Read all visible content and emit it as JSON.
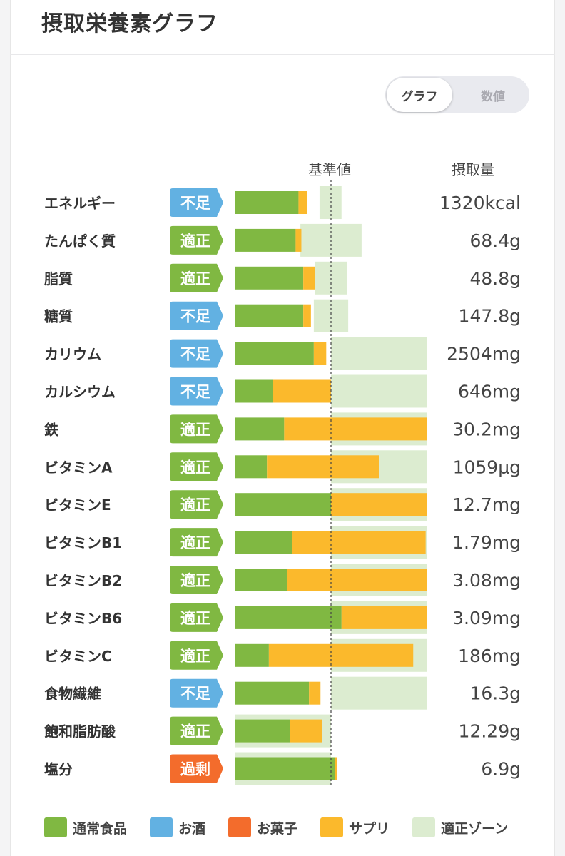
{
  "header": {
    "title": "摂取栄養素グラフ"
  },
  "view_toggle": {
    "graph_label": "グラフ",
    "numeric_label": "数値",
    "selected": "グラフ"
  },
  "colors": {
    "food": "#80b842",
    "alcohol": "#62b1e2",
    "snack": "#f36c2c",
    "supplement": "#fbb92c",
    "zone": "#dcecd0",
    "badge_lack": "#62b1e2",
    "badge_ok": "#80b842",
    "badge_excess": "#f36c2c"
  },
  "chart_data": {
    "type": "bar",
    "column_headers": {
      "reference": "基準値",
      "intake": "摂取量"
    },
    "unit_note": "percent of reference value",
    "rows": [
      {
        "name": "エネルギー",
        "status": "不足",
        "food": 66,
        "supplement": 9,
        "zone": [
          88,
          111
        ],
        "intake": "1320kcal"
      },
      {
        "name": "たんぱく質",
        "status": "適正",
        "food": 63,
        "supplement": 6,
        "zone": [
          68,
          132
        ],
        "intake": "68.4g"
      },
      {
        "name": "脂質",
        "status": "適正",
        "food": 71,
        "supplement": 12,
        "zone": [
          83,
          117
        ],
        "intake": "48.8g"
      },
      {
        "name": "糖質",
        "status": "不足",
        "food": 71,
        "supplement": 8,
        "zone": [
          82,
          118
        ],
        "intake": "147.8g"
      },
      {
        "name": "カリウム",
        "status": "不足",
        "food": 82,
        "supplement": 13,
        "zone": [
          100,
          200
        ],
        "intake": "2504mg"
      },
      {
        "name": "カルシウム",
        "status": "不足",
        "food": 39,
        "supplement": 61,
        "zone": [
          100,
          200
        ],
        "intake": "646mg"
      },
      {
        "name": "鉄",
        "status": "適正",
        "food": 51,
        "supplement": 149,
        "zone": [
          100,
          200
        ],
        "intake": "30.2mg"
      },
      {
        "name": "ビタミンA",
        "status": "適正",
        "food": 33,
        "supplement": 117,
        "zone": [
          100,
          200
        ],
        "intake": "1059μg"
      },
      {
        "name": "ビタミンE",
        "status": "適正",
        "food": 100,
        "supplement": 100,
        "zone": [
          100,
          200
        ],
        "intake": "12.7mg"
      },
      {
        "name": "ビタミンB1",
        "status": "適正",
        "food": 59,
        "supplement": 140,
        "zone": [
          100,
          200
        ],
        "intake": "1.79mg"
      },
      {
        "name": "ビタミンB2",
        "status": "適正",
        "food": 54,
        "supplement": 146,
        "zone": [
          100,
          200
        ],
        "intake": "3.08mg"
      },
      {
        "name": "ビタミンB6",
        "status": "適正",
        "food": 111,
        "supplement": 89,
        "zone": [
          100,
          200
        ],
        "intake": "3.09mg"
      },
      {
        "name": "ビタミンC",
        "status": "適正",
        "food": 35,
        "supplement": 151,
        "zone": [
          100,
          200
        ],
        "intake": "186mg"
      },
      {
        "name": "食物繊維",
        "status": "不足",
        "food": 77,
        "supplement": 12,
        "zone": [
          100,
          200
        ],
        "intake": "16.3g"
      },
      {
        "name": "飽和脂肪酸",
        "status": "適正",
        "food": 57,
        "supplement": 34,
        "zone": [
          0,
          100
        ],
        "intake": "12.29g"
      },
      {
        "name": "塩分",
        "status": "過剰",
        "food": 104,
        "supplement": 2,
        "zone": [
          0,
          100
        ],
        "intake": "6.9g"
      }
    ],
    "legend": [
      {
        "key": "food",
        "label": "通常食品"
      },
      {
        "key": "alcohol",
        "label": "お酒"
      },
      {
        "key": "snack",
        "label": "お菓子"
      },
      {
        "key": "supplement",
        "label": "サプリ"
      },
      {
        "key": "zone",
        "label": "適正ゾーン"
      }
    ],
    "xlim": [
      0,
      200
    ]
  }
}
